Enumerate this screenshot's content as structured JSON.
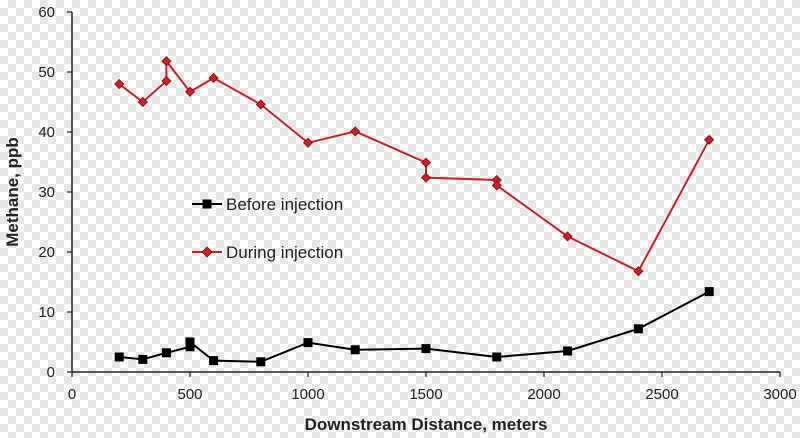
{
  "chart_data": {
    "type": "line",
    "xlabel": "Downstream Distance, meters",
    "ylabel": "Methane, ppb",
    "xlim": [
      0,
      3000
    ],
    "ylim": [
      0,
      60
    ],
    "xticks": [
      0,
      500,
      1000,
      1500,
      2000,
      2500,
      3000
    ],
    "yticks": [
      0,
      10,
      20,
      30,
      40,
      50,
      60
    ],
    "grid": false,
    "legend_position": "center-left",
    "series": [
      {
        "name": "Before injection",
        "color": "#000000",
        "marker": "square",
        "points": [
          [
            200,
            2.5
          ],
          [
            300,
            2.1
          ],
          [
            400,
            3.2
          ],
          [
            500,
            4.2
          ],
          [
            500,
            5.0
          ],
          [
            600,
            1.9
          ],
          [
            800,
            1.7
          ],
          [
            1000,
            4.9
          ],
          [
            1200,
            3.7
          ],
          [
            1500,
            3.9
          ],
          [
            1800,
            2.5
          ],
          [
            2100,
            3.5
          ],
          [
            2400,
            7.2
          ],
          [
            2700,
            13.4
          ]
        ]
      },
      {
        "name": "During injection",
        "color": "#cc1f26",
        "marker": "diamond",
        "points": [
          [
            200,
            48.0
          ],
          [
            300,
            45.0
          ],
          [
            400,
            48.5
          ],
          [
            400,
            51.8
          ],
          [
            500,
            46.7
          ],
          [
            600,
            49.0
          ],
          [
            800,
            44.6
          ],
          [
            1000,
            38.2
          ],
          [
            1200,
            40.1
          ],
          [
            1500,
            34.9
          ],
          [
            1500,
            32.4
          ],
          [
            1800,
            32.0
          ],
          [
            1800,
            31.1
          ],
          [
            2100,
            22.6
          ],
          [
            2400,
            16.8
          ],
          [
            2700,
            38.7
          ]
        ]
      }
    ]
  }
}
